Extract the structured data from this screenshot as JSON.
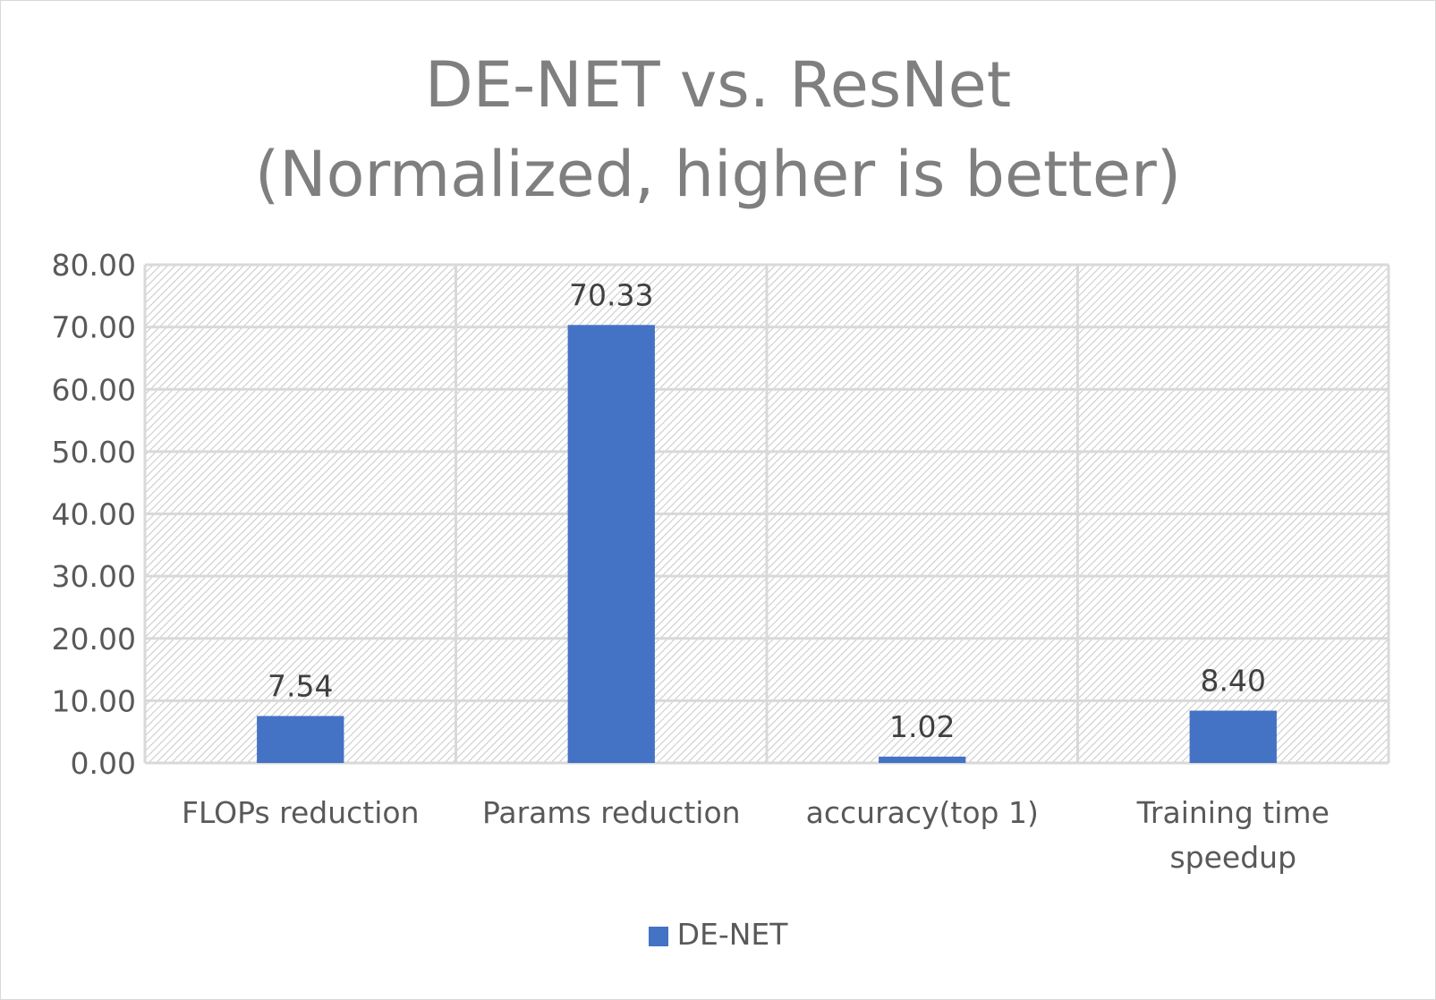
{
  "chart_data": {
    "type": "bar",
    "title_lines": [
      "DE-NET vs. ResNet",
      "(Normalized, higher is better)"
    ],
    "categories": [
      "FLOPs reduction",
      "Params reduction",
      "accuracy(top 1)",
      "Training time speedup"
    ],
    "category_label_lines": [
      [
        "FLOPs reduction"
      ],
      [
        "Params reduction"
      ],
      [
        "accuracy(top 1)"
      ],
      [
        "Training time",
        "speedup"
      ]
    ],
    "series": [
      {
        "name": "DE-NET",
        "values": [
          7.54,
          70.33,
          1.02,
          8.4
        ],
        "data_labels": [
          "7.54",
          "70.33",
          "1.02",
          "8.40"
        ],
        "color": "#4472c4"
      }
    ],
    "ylim": [
      0,
      80
    ],
    "yticks": [
      "0.00",
      "10.00",
      "20.00",
      "30.00",
      "40.00",
      "50.00",
      "60.00",
      "70.00",
      "80.00"
    ],
    "grid": true,
    "plot_background": "hatched",
    "legend_position": "bottom",
    "xlabel": "",
    "ylabel": ""
  },
  "colors": {
    "title": "#7f7f7f",
    "axis_text": "#595959",
    "gridline": "#d9d9d9",
    "hatch": "#bfbfbf"
  }
}
